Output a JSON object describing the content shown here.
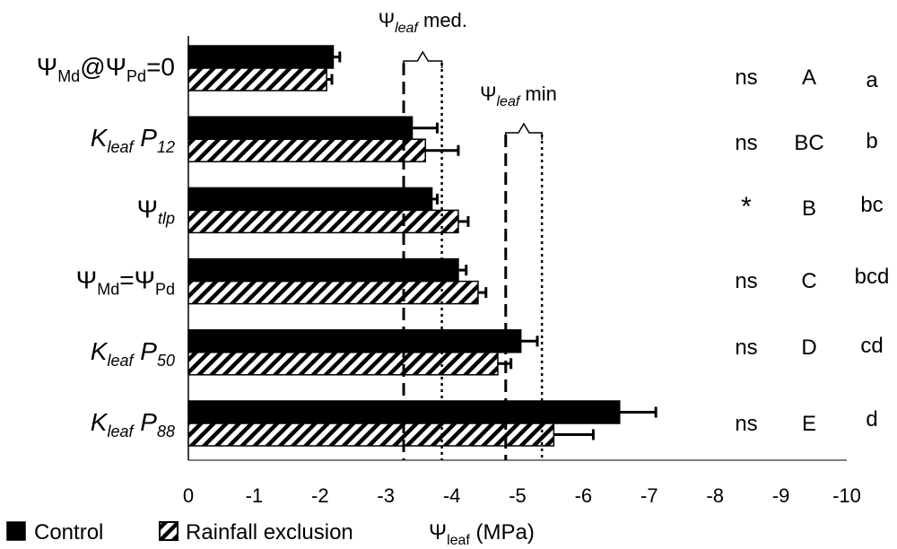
{
  "chart_data": {
    "type": "bar",
    "orientation": "horizontal",
    "xlabel": {
      "symbol": "Ψ",
      "sub": "leaf",
      "unit": " (MPa)"
    },
    "xlim": [
      0,
      -10
    ],
    "xticks": [
      0,
      -1,
      -2,
      -3,
      -4,
      -5,
      -6,
      -7,
      -8,
      -9,
      -10
    ],
    "legend_position": "bottom-left",
    "categories": [
      {
        "id": "psi-md-at-psi-pd-0",
        "parts": [
          {
            "t": "Ψ"
          },
          {
            "t": "Md",
            "sub": true
          },
          {
            "t": "@Ψ"
          },
          {
            "t": "Pd",
            "sub": true
          },
          {
            "t": "=0"
          }
        ]
      },
      {
        "id": "kleaf-p12",
        "parts": [
          {
            "t": "K",
            "italic": true
          },
          {
            "t": "leaf",
            "sub": true,
            "italic": true
          },
          {
            "t": " P",
            "italic": true
          },
          {
            "t": "12",
            "sub": true,
            "italic": true
          }
        ]
      },
      {
        "id": "psi-tlp",
        "parts": [
          {
            "t": "Ψ"
          },
          {
            "t": "tlp",
            "sub": true,
            "italic": true
          }
        ]
      },
      {
        "id": "psi-md-eq-psi-pd",
        "parts": [
          {
            "t": "Ψ"
          },
          {
            "t": "Md",
            "sub": true
          },
          {
            "t": "=Ψ"
          },
          {
            "t": "Pd",
            "sub": true
          }
        ]
      },
      {
        "id": "kleaf-p50",
        "parts": [
          {
            "t": "K",
            "italic": true
          },
          {
            "t": "leaf",
            "sub": true,
            "italic": true
          },
          {
            "t": " P",
            "italic": true
          },
          {
            "t": "50",
            "sub": true,
            "italic": true
          }
        ]
      },
      {
        "id": "kleaf-p88",
        "parts": [
          {
            "t": "K",
            "italic": true
          },
          {
            "t": "leaf",
            "sub": true,
            "italic": true
          },
          {
            "t": " P",
            "italic": true
          },
          {
            "t": "88",
            "sub": true,
            "italic": true
          }
        ]
      }
    ],
    "series": [
      {
        "name": "Control",
        "fill": "solid",
        "color": "#000000",
        "values": [
          -2.2,
          -3.4,
          -3.7,
          -4.1,
          -5.05,
          -6.55
        ],
        "errors": [
          0.1,
          0.38,
          0.08,
          0.12,
          0.25,
          0.55
        ]
      },
      {
        "name": "Rainfall exclusion",
        "fill": "hatched",
        "color": "#000000",
        "values": [
          -2.1,
          -3.6,
          -4.1,
          -4.4,
          -4.7,
          -5.55
        ],
        "errors": [
          0.08,
          0.5,
          0.15,
          0.12,
          0.2,
          0.6
        ]
      }
    ],
    "reference_lines": [
      {
        "label": "Ψleaf med.",
        "symbol": "Ψ",
        "sub": "leaf",
        "suffix": " med.",
        "dashed_value": -3.27,
        "dotted_value": -3.85
      },
      {
        "label": "Ψleaf min",
        "symbol": "Ψ",
        "sub": "leaf",
        "suffix": " min",
        "dashed_value": -4.82,
        "dotted_value": -5.37
      }
    ],
    "annotations": {
      "significance": [
        "ns",
        "ns",
        "*",
        "ns",
        "ns",
        "ns"
      ],
      "control_letters": [
        "A",
        "BC",
        "B",
        "C",
        "D",
        "E"
      ],
      "exclusion_letters": [
        "a",
        "b",
        "bc",
        "bcd",
        "cd",
        "d"
      ]
    }
  }
}
